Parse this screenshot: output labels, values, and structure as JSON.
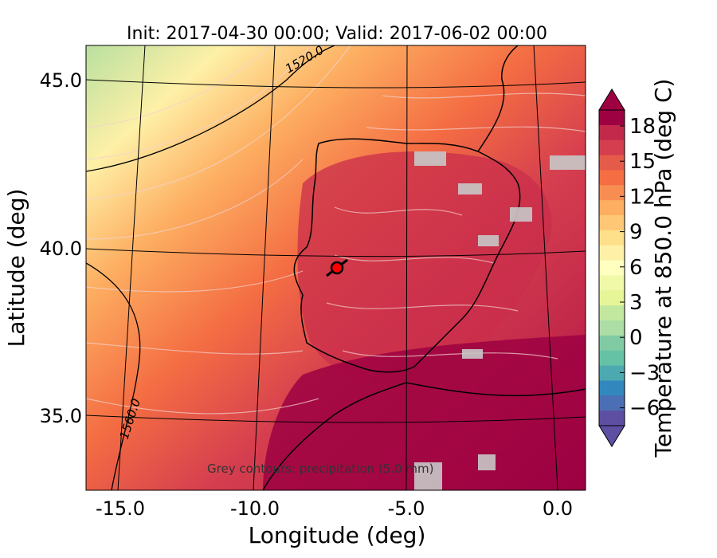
{
  "map": {
    "title": "Init: 2017-04-30 00:00; Valid: 2017-06-02 00:00",
    "xlabel": "Longitude (deg)",
    "ylabel": "Latitude (deg)",
    "xticks": [
      "-15.0",
      "-10.0",
      "-5.0",
      "0.0"
    ],
    "yticks": [
      "45.0",
      "40.0",
      "35.0"
    ],
    "contour_labels": [
      "1520.0",
      "1560.0"
    ],
    "note": "Grey contours: precipitation (5.0 mm)",
    "colorbar": {
      "label": "Temperature at 850.0 hPa (deg C)",
      "ticks": [
        "18",
        "15",
        "12",
        "9",
        "6",
        "3",
        "0",
        "−3",
        "−6"
      ],
      "colors": [
        "#9e0142",
        "#c2294a",
        "#d53e4f",
        "#e45c49",
        "#f46d43",
        "#f88d52",
        "#fdae61",
        "#fdc776",
        "#fee08b",
        "#fef0a7",
        "#ffffbf",
        "#f0f9a8",
        "#e6f598",
        "#c2e79e",
        "#abdda4",
        "#80cba4",
        "#66c2a5",
        "#4da9b0",
        "#3288bd",
        "#4a6fb4",
        "#5e4fa2"
      ]
    },
    "marker": {
      "lon": -7.6,
      "lat": 39.3
    }
  }
}
